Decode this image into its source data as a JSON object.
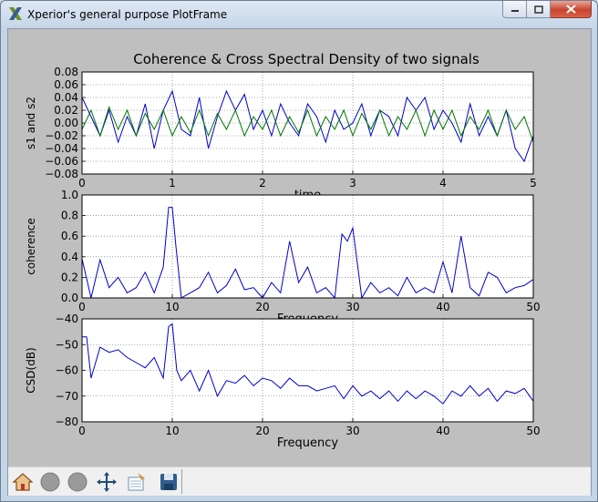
{
  "window": {
    "title": "Xperior's general purpose PlotFrame",
    "icons": {
      "app": "x-logo-icon",
      "minimize": "minimize-icon",
      "maximize": "maximize-icon",
      "close": "close-icon"
    }
  },
  "figure": {
    "title": "Coherence & Cross Spectral Density of two signals"
  },
  "toolbar": {
    "buttons": [
      {
        "icon": "home-icon"
      },
      {
        "icon": "back-icon"
      },
      {
        "icon": "forward-icon"
      },
      {
        "icon": "pan-icon"
      },
      {
        "icon": "zoom-icon"
      },
      {
        "icon": "save-icon"
      }
    ]
  },
  "chart_data": [
    {
      "type": "line",
      "xlabel": "time",
      "ylabel": "s1 and s2",
      "xlim": [
        0,
        5
      ],
      "ylim": [
        -0.08,
        0.08
      ],
      "xticks": [
        "0",
        "1",
        "2",
        "3",
        "4",
        "5"
      ],
      "yticks": [
        "0.08",
        "0.06",
        "0.04",
        "0.02",
        "0.00",
        "−0.02",
        "−0.04",
        "−0.06",
        "−0.08"
      ],
      "grid": true,
      "series": [
        {
          "color": "#0000cc",
          "x": [
            0,
            0.1,
            0.2,
            0.3,
            0.4,
            0.5,
            0.6,
            0.7,
            0.8,
            0.9,
            1.0,
            1.1,
            1.2,
            1.3,
            1.4,
            1.5,
            1.6,
            1.7,
            1.8,
            1.9,
            2.0,
            2.1,
            2.2,
            2.3,
            2.4,
            2.5,
            2.6,
            2.7,
            2.8,
            2.9,
            3.0,
            3.1,
            3.2,
            3.3,
            3.4,
            3.5,
            3.6,
            3.7,
            3.8,
            3.9,
            4.0,
            4.1,
            4.2,
            4.3,
            4.4,
            4.5,
            4.6,
            4.7,
            4.8,
            4.9,
            5.0
          ],
          "y": [
            0.04,
            0.01,
            -0.02,
            0.02,
            -0.03,
            0.01,
            -0.02,
            0.03,
            -0.04,
            0.02,
            0.05,
            -0.01,
            -0.02,
            0.04,
            -0.04,
            0.01,
            0.05,
            0.02,
            0.045,
            -0.01,
            0.02,
            -0.02,
            0.03,
            0.0,
            -0.02,
            0.03,
            0.01,
            -0.03,
            0.02,
            -0.01,
            0.0,
            0.03,
            -0.02,
            0.02,
            0.01,
            -0.02,
            0.04,
            0.02,
            0.04,
            -0.01,
            0.02,
            0.0,
            -0.03,
            0.03,
            -0.02,
            0.01,
            -0.02,
            0.02,
            -0.04,
            -0.06,
            -0.02
          ]
        },
        {
          "color": "#007700",
          "x": [
            0,
            0.1,
            0.2,
            0.3,
            0.4,
            0.5,
            0.6,
            0.7,
            0.8,
            0.9,
            1.0,
            1.1,
            1.2,
            1.3,
            1.4,
            1.5,
            1.6,
            1.7,
            1.8,
            1.9,
            2.0,
            2.1,
            2.2,
            2.3,
            2.4,
            2.5,
            2.6,
            2.7,
            2.8,
            2.9,
            3.0,
            3.1,
            3.2,
            3.3,
            3.4,
            3.5,
            3.6,
            3.7,
            3.8,
            3.9,
            4.0,
            4.1,
            4.2,
            4.3,
            4.4,
            4.5,
            4.6,
            4.7,
            4.8,
            4.9,
            5.0
          ],
          "y": [
            -0.01,
            0.02,
            -0.02,
            0.025,
            -0.01,
            0.02,
            -0.02,
            0.015,
            -0.01,
            0.02,
            -0.02,
            0.01,
            -0.015,
            0.02,
            -0.02,
            0.015,
            -0.01,
            0.02,
            -0.02,
            0.01,
            -0.01,
            0.02,
            -0.02,
            0.01,
            -0.015,
            0.02,
            -0.02,
            0.01,
            -0.01,
            0.02,
            -0.02,
            0.015,
            -0.01,
            0.02,
            -0.02,
            0.01,
            -0.01,
            0.02,
            -0.02,
            0.02,
            -0.01,
            0.02,
            -0.02,
            0.01,
            -0.01,
            0.02,
            -0.02,
            0.02,
            -0.01,
            0.01,
            -0.03
          ]
        }
      ]
    },
    {
      "type": "line",
      "xlabel": "Frequency",
      "ylabel": "coherence",
      "xlim": [
        0,
        50
      ],
      "ylim": [
        0.0,
        1.0
      ],
      "xticks": [
        "0",
        "10",
        "20",
        "30",
        "40",
        "50"
      ],
      "yticks": [
        "1.0",
        "0.8",
        "0.6",
        "0.4",
        "0.2",
        "0.0"
      ],
      "grid": true,
      "series": [
        {
          "color": "#0000cc",
          "x": [
            0,
            1,
            2,
            3,
            4,
            5,
            6,
            7,
            8,
            9,
            9.6,
            10,
            10.4,
            11,
            12,
            13,
            14,
            15,
            16,
            17,
            18,
            19,
            20,
            21,
            22,
            23,
            24,
            25,
            26,
            27,
            28,
            28.8,
            29.4,
            30,
            31,
            32,
            33,
            34,
            35,
            36,
            37,
            38,
            39,
            40,
            41,
            42,
            43,
            44,
            45,
            46,
            47,
            48,
            49,
            50
          ],
          "y": [
            0.38,
            0.0,
            0.37,
            0.1,
            0.2,
            0.05,
            0.1,
            0.25,
            0.05,
            0.3,
            0.88,
            0.88,
            0.5,
            0.0,
            0.05,
            0.1,
            0.25,
            0.05,
            0.12,
            0.28,
            0.08,
            0.1,
            0.0,
            0.15,
            0.05,
            0.55,
            0.15,
            0.3,
            0.05,
            0.1,
            0.0,
            0.62,
            0.55,
            0.68,
            0.0,
            0.15,
            0.05,
            0.1,
            0.02,
            0.2,
            0.05,
            0.1,
            0.05,
            0.35,
            0.05,
            0.6,
            0.1,
            0.02,
            0.25,
            0.2,
            0.05,
            0.1,
            0.12,
            0.18
          ]
        }
      ]
    },
    {
      "type": "line",
      "xlabel": "Frequency",
      "ylabel": "CSD(dB)",
      "xlim": [
        0,
        50
      ],
      "ylim": [
        -80,
        -40
      ],
      "xticks": [
        "0",
        "10",
        "20",
        "30",
        "40",
        "50"
      ],
      "yticks": [
        "−40",
        "−50",
        "−60",
        "−70",
        "−80"
      ],
      "grid": true,
      "series": [
        {
          "color": "#0000cc",
          "x": [
            0,
            0.5,
            1,
            2,
            3,
            4,
            5,
            6,
            7,
            8,
            9,
            9.6,
            10,
            10.5,
            11,
            12,
            13,
            14,
            15,
            16,
            17,
            18,
            19,
            20,
            21,
            22,
            23,
            24,
            25,
            26,
            27,
            28,
            29,
            30,
            31,
            32,
            33,
            34,
            35,
            36,
            37,
            38,
            39,
            40,
            41,
            42,
            43,
            44,
            45,
            46,
            47,
            48,
            49,
            50
          ],
          "y": [
            -47,
            -47,
            -63,
            -51,
            -53,
            -52,
            -55,
            -57,
            -59,
            -55,
            -63,
            -43,
            -42,
            -60,
            -64,
            -60,
            -68,
            -60,
            -70,
            -64,
            -65,
            -62,
            -66,
            -63,
            -64,
            -67,
            -63,
            -66,
            -66,
            -68,
            -67,
            -66,
            -71,
            -66,
            -70,
            -68,
            -71,
            -68,
            -72,
            -68,
            -71,
            -68,
            -70,
            -73,
            -68,
            -70,
            -66,
            -70,
            -67,
            -72,
            -68,
            -69,
            -67,
            -72
          ]
        }
      ]
    }
  ]
}
